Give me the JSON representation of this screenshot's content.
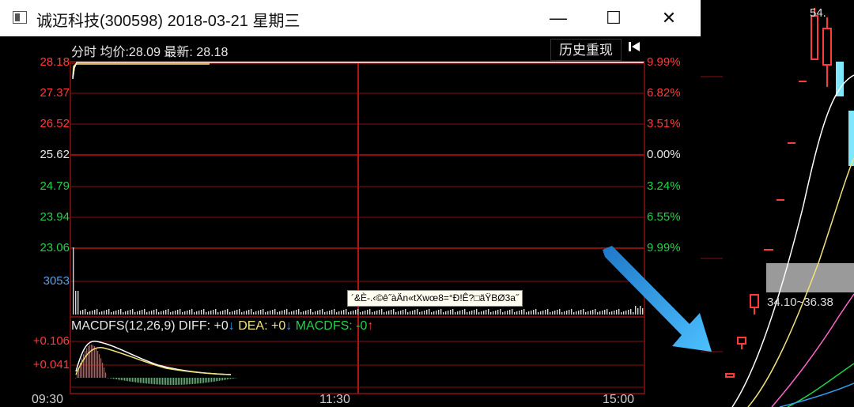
{
  "window": {
    "title": "诚迈科技(300598) 2018-03-21 星期三",
    "controls": {
      "minimize": "—",
      "maximize": "☐",
      "close": "✕"
    }
  },
  "header": {
    "mode": "分时",
    "avg_label": "均价:",
    "avg_value": "28.09",
    "latest_label": "最新:",
    "latest_value": "28.18",
    "history_button": "历史重现",
    "nav_icon": "skip-back-icon"
  },
  "price_axis": {
    "left": [
      {
        "text": "28.18",
        "color": "#ff3b3b"
      },
      {
        "text": "27.37",
        "color": "#ff3b3b"
      },
      {
        "text": "26.52",
        "color": "#ff3b3b"
      },
      {
        "text": "25.62",
        "color": "#e6e6e6"
      },
      {
        "text": "24.79",
        "color": "#22d14a"
      },
      {
        "text": "23.94",
        "color": "#22d14a"
      },
      {
        "text": "23.06",
        "color": "#22d14a"
      }
    ],
    "right": [
      {
        "text": "9.99%",
        "color": "#ff3b3b"
      },
      {
        "text": "6.82%",
        "color": "#ff3b3b"
      },
      {
        "text": "3.51%",
        "color": "#ff3b3b"
      },
      {
        "text": "0.00%",
        "color": "#e6e6e6"
      },
      {
        "text": "3.24%",
        "color": "#22d14a"
      },
      {
        "text": "6.55%",
        "color": "#22d14a"
      },
      {
        "text": "9.99%",
        "color": "#22d14a"
      }
    ]
  },
  "volume": {
    "max_label": "3053"
  },
  "macd": {
    "name": "MACDFS(12,26,9)",
    "diff_label": "DIFF:",
    "diff_value": "+0",
    "dea_label": "DEA:",
    "dea_value": "+0",
    "macdfs_label": "MACDFS:",
    "macdfs_value": "-0",
    "axis": [
      "+0.106",
      "+0.041"
    ]
  },
  "time_axis": [
    "09:30",
    "11:30",
    "15:00"
  ],
  "tooltip": "´&È-.‹©ê˝àÄn«tXwœ8=°Ð!Ê?□ãŸBØ3a˝",
  "right_panel": {
    "top_label": "54.",
    "range_label": "34.10~36.38"
  },
  "colors": {
    "background": "#000000",
    "grid": "#8a1010",
    "up": "#ff3b3b",
    "down": "#22d14a",
    "price_line": "#ffffff",
    "avg_line": "#f2e27a",
    "arrow": "#2ea0f0"
  }
}
